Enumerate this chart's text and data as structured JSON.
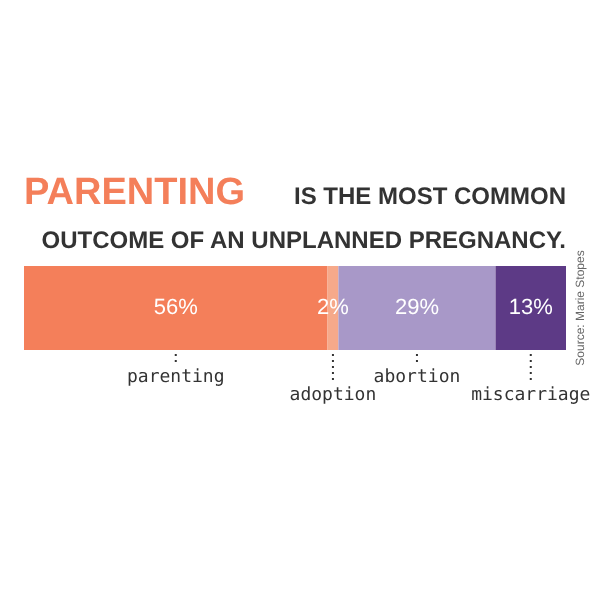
{
  "chart_data": {
    "type": "bar",
    "orientation": "horizontal",
    "stacked": true,
    "title": "PARENTING IS THE MOST COMMON OUTCOME OF AN UNPLANNED PREGNANCY.",
    "categories": [
      null
    ],
    "series": [
      {
        "name": "parenting",
        "color": "#f47f5a",
        "values": [
          56
        ],
        "value_labels": [
          "56%"
        ]
      },
      {
        "name": "adoption",
        "color": "#f6a98a",
        "values": [
          2
        ],
        "value_labels": [
          "2%"
        ]
      },
      {
        "name": "abortion",
        "color": "#a898c8",
        "values": [
          29
        ],
        "value_labels": [
          "29%"
        ]
      },
      {
        "name": "miscarriage",
        "color": "#5d3a86",
        "values": [
          13
        ],
        "value_labels": [
          "13%"
        ]
      }
    ],
    "annotations": [
      "Source: Marie Stopes"
    ]
  }
}
